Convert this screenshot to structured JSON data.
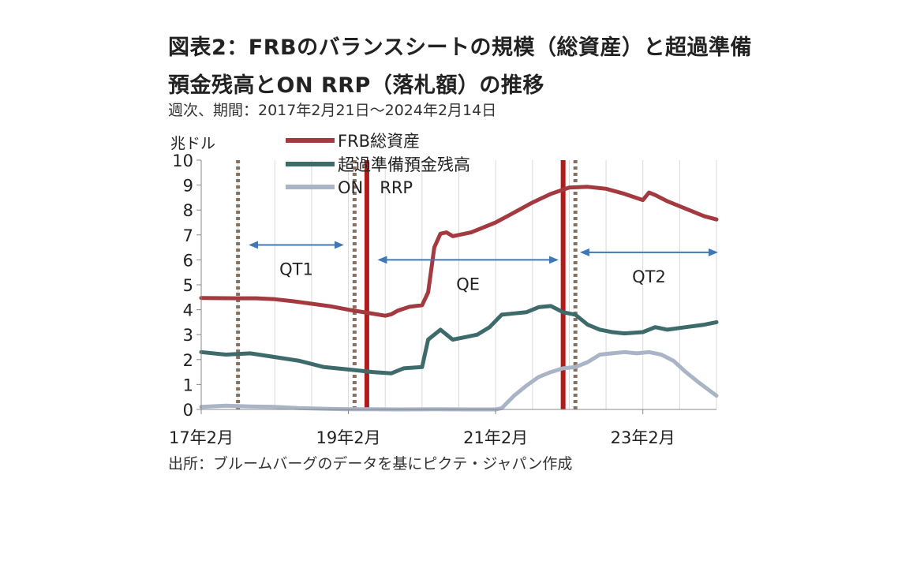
{
  "header": {
    "title_line1": "図表2：FRBのバランスシートの規模（総資産）と超過準備",
    "title_line2": "預金残高とON RRP（落札額）の推移",
    "subtitle": "週次、期間：2017年2月21日～2024年2月14日"
  },
  "footer": {
    "source": "出所：ブルームバーグのデータを基にピクテ・ジャパン作成"
  },
  "chart_data": {
    "type": "line",
    "title": "図表2：FRBのバランスシートの規模（総資産）と超過準備預金残高とON RRP（落札額）の推移",
    "subtitle": "週次、期間：2017年2月21日～2024年2月14日",
    "ylabel": "兆ドル",
    "xlabel": "",
    "ylim": [
      0,
      10
    ],
    "yticks": [
      0,
      1,
      2,
      3,
      4,
      5,
      6,
      7,
      8,
      9,
      10
    ],
    "xlim": [
      "2017-02",
      "2024-02"
    ],
    "xticks": [
      {
        "x": "2017-02",
        "label": "17年2月"
      },
      {
        "x": "2019-02",
        "label": "19年2月"
      },
      {
        "x": "2021-02",
        "label": "21年2月"
      },
      {
        "x": "2023-02",
        "label": "23年2月"
      }
    ],
    "grid": "vertical",
    "legend": "top-center",
    "series": [
      {
        "name": "FRB総資産",
        "color": "#a33a3f",
        "points": [
          [
            "2017-02",
            4.47
          ],
          [
            "2017-08",
            4.46
          ],
          [
            "2017-11",
            4.46
          ],
          [
            "2018-02",
            4.42
          ],
          [
            "2018-05",
            4.34
          ],
          [
            "2018-08",
            4.24
          ],
          [
            "2018-11",
            4.14
          ],
          [
            "2019-02",
            4.0
          ],
          [
            "2019-05",
            3.88
          ],
          [
            "2019-08",
            3.76
          ],
          [
            "2019-09",
            3.82
          ],
          [
            "2019-10",
            3.96
          ],
          [
            "2019-12",
            4.12
          ],
          [
            "2020-02",
            4.18
          ],
          [
            "2020-03",
            4.7
          ],
          [
            "2020-04",
            6.5
          ],
          [
            "2020-05",
            7.05
          ],
          [
            "2020-06",
            7.1
          ],
          [
            "2020-07",
            6.95
          ],
          [
            "2020-08",
            7.0
          ],
          [
            "2020-10",
            7.1
          ],
          [
            "2020-12",
            7.3
          ],
          [
            "2021-02",
            7.5
          ],
          [
            "2021-05",
            7.9
          ],
          [
            "2021-08",
            8.3
          ],
          [
            "2021-11",
            8.65
          ],
          [
            "2022-02",
            8.9
          ],
          [
            "2022-05",
            8.93
          ],
          [
            "2022-08",
            8.85
          ],
          [
            "2022-11",
            8.65
          ],
          [
            "2023-02",
            8.4
          ],
          [
            "2023-03",
            8.7
          ],
          [
            "2023-04",
            8.6
          ],
          [
            "2023-06",
            8.35
          ],
          [
            "2023-09",
            8.05
          ],
          [
            "2023-12",
            7.75
          ],
          [
            "2024-02",
            7.62
          ]
        ]
      },
      {
        "name": "超過準備預金残高",
        "color": "#3d6a6a",
        "points": [
          [
            "2017-02",
            2.3
          ],
          [
            "2017-06",
            2.2
          ],
          [
            "2017-10",
            2.25
          ],
          [
            "2018-02",
            2.1
          ],
          [
            "2018-06",
            1.95
          ],
          [
            "2018-10",
            1.7
          ],
          [
            "2019-02",
            1.6
          ],
          [
            "2019-06",
            1.5
          ],
          [
            "2019-09",
            1.45
          ],
          [
            "2019-11",
            1.65
          ],
          [
            "2020-02",
            1.7
          ],
          [
            "2020-03",
            2.8
          ],
          [
            "2020-05",
            3.2
          ],
          [
            "2020-07",
            2.8
          ],
          [
            "2020-09",
            2.9
          ],
          [
            "2020-11",
            3.0
          ],
          [
            "2021-01",
            3.3
          ],
          [
            "2021-03",
            3.8
          ],
          [
            "2021-05",
            3.85
          ],
          [
            "2021-07",
            3.9
          ],
          [
            "2021-09",
            4.1
          ],
          [
            "2021-11",
            4.15
          ],
          [
            "2022-01",
            3.9
          ],
          [
            "2022-03",
            3.8
          ],
          [
            "2022-05",
            3.4
          ],
          [
            "2022-07",
            3.2
          ],
          [
            "2022-09",
            3.1
          ],
          [
            "2022-11",
            3.05
          ],
          [
            "2023-02",
            3.1
          ],
          [
            "2023-04",
            3.3
          ],
          [
            "2023-06",
            3.2
          ],
          [
            "2023-09",
            3.3
          ],
          [
            "2023-12",
            3.4
          ],
          [
            "2024-02",
            3.5
          ]
        ]
      },
      {
        "name": "ON　RRP",
        "color": "#a9b5c6",
        "points": [
          [
            "2017-02",
            0.1
          ],
          [
            "2017-06",
            0.15
          ],
          [
            "2017-10",
            0.12
          ],
          [
            "2018-02",
            0.1
          ],
          [
            "2018-06",
            0.05
          ],
          [
            "2018-10",
            0.03
          ],
          [
            "2019-02",
            0.01
          ],
          [
            "2019-06",
            0.01
          ],
          [
            "2019-10",
            0.0
          ],
          [
            "2020-04",
            0.01
          ],
          [
            "2020-10",
            0.0
          ],
          [
            "2021-02",
            0.0
          ],
          [
            "2021-03",
            0.05
          ],
          [
            "2021-05",
            0.55
          ],
          [
            "2021-07",
            0.95
          ],
          [
            "2021-09",
            1.3
          ],
          [
            "2021-11",
            1.5
          ],
          [
            "2022-01",
            1.65
          ],
          [
            "2022-03",
            1.7
          ],
          [
            "2022-05",
            1.9
          ],
          [
            "2022-07",
            2.2
          ],
          [
            "2022-09",
            2.25
          ],
          [
            "2022-11",
            2.3
          ],
          [
            "2023-01",
            2.25
          ],
          [
            "2023-03",
            2.3
          ],
          [
            "2023-05",
            2.2
          ],
          [
            "2023-07",
            1.95
          ],
          [
            "2023-09",
            1.5
          ],
          [
            "2023-11",
            1.1
          ],
          [
            "2024-02",
            0.55
          ]
        ]
      }
    ],
    "markers": [
      {
        "type": "dotted",
        "x": "2017-08",
        "color": "#8a6e5f"
      },
      {
        "type": "dotted",
        "x": "2019-03",
        "color": "#8a6e5f"
      },
      {
        "type": "solid",
        "x": "2019-05",
        "color": "#b01c1c"
      },
      {
        "type": "solid",
        "x": "2022-01",
        "color": "#b01c1c"
      },
      {
        "type": "dotted",
        "x": "2022-03",
        "color": "#8a6e5f"
      }
    ],
    "annotations": [
      {
        "label": "QT1",
        "from": "2017-10",
        "to": "2019-01",
        "y": 6.6
      },
      {
        "label": "QE",
        "from": "2019-07",
        "to": "2021-12",
        "y": 6.0
      },
      {
        "label": "QT2",
        "from": "2022-04",
        "to": "2024-02",
        "y": 6.3
      }
    ],
    "annotation_color": "#3f78b5"
  }
}
